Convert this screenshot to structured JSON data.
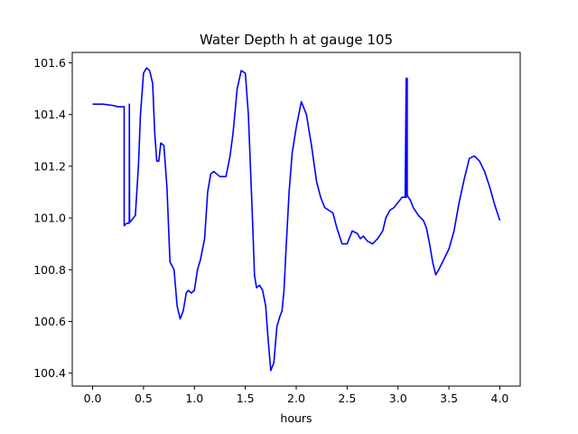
{
  "chart_data": {
    "type": "line",
    "title": "Water Depth h at gauge 105",
    "xlabel": "hours",
    "ylabel": "",
    "xlim": [
      -0.2,
      4.2
    ],
    "ylim": [
      100.35,
      101.64
    ],
    "xticks": [
      {
        "value": 0.0,
        "label": "0.0"
      },
      {
        "value": 0.5,
        "label": "0.5"
      },
      {
        "value": 1.0,
        "label": "1.0"
      },
      {
        "value": 1.5,
        "label": "1.5"
      },
      {
        "value": 2.0,
        "label": "2.0"
      },
      {
        "value": 2.5,
        "label": "2.5"
      },
      {
        "value": 3.0,
        "label": "3.0"
      },
      {
        "value": 3.5,
        "label": "3.5"
      },
      {
        "value": 4.0,
        "label": "4.0"
      }
    ],
    "yticks": [
      {
        "value": 100.4,
        "label": "100.4"
      },
      {
        "value": 100.6,
        "label": "100.6"
      },
      {
        "value": 100.8,
        "label": "100.8"
      },
      {
        "value": 101.0,
        "label": "101.0"
      },
      {
        "value": 101.2,
        "label": "101.2"
      },
      {
        "value": 101.4,
        "label": "101.4"
      },
      {
        "value": 101.6,
        "label": "101.6"
      }
    ],
    "grid": false,
    "series": [
      {
        "color": "#0000ff",
        "x": [
          0.0,
          0.1,
          0.2,
          0.25,
          0.3,
          0.31,
          0.31,
          0.32,
          0.34,
          0.36,
          0.361,
          0.363,
          0.365,
          0.37,
          0.4,
          0.42,
          0.45,
          0.47,
          0.5,
          0.53,
          0.56,
          0.59,
          0.61,
          0.63,
          0.65,
          0.67,
          0.7,
          0.73,
          0.76,
          0.8,
          0.83,
          0.86,
          0.89,
          0.92,
          0.94,
          0.97,
          1.0,
          1.03,
          1.06,
          1.1,
          1.13,
          1.16,
          1.19,
          1.22,
          1.25,
          1.28,
          1.31,
          1.35,
          1.38,
          1.42,
          1.46,
          1.5,
          1.53,
          1.55,
          1.57,
          1.59,
          1.61,
          1.64,
          1.67,
          1.7,
          1.72,
          1.75,
          1.78,
          1.81,
          1.84,
          1.86,
          1.88,
          1.9,
          1.93,
          1.96,
          2.0,
          2.05,
          2.1,
          2.15,
          2.2,
          2.24,
          2.28,
          2.32,
          2.36,
          2.4,
          2.45,
          2.5,
          2.55,
          2.6,
          2.63,
          2.66,
          2.7,
          2.75,
          2.8,
          2.85,
          2.88,
          2.92,
          2.96,
          3.0,
          3.04,
          3.07,
          3.08,
          3.08,
          3.09,
          3.09,
          3.1,
          3.12,
          3.15,
          3.2,
          3.25,
          3.28,
          3.31,
          3.34,
          3.37,
          3.4,
          3.45,
          3.5,
          3.55,
          3.6,
          3.65,
          3.7,
          3.75,
          3.8,
          3.85,
          3.9,
          3.95,
          4.0
        ],
        "y": [
          101.44,
          101.44,
          101.435,
          101.43,
          101.43,
          101.43,
          100.97,
          100.975,
          100.98,
          100.98,
          101.44,
          100.99,
          100.985,
          100.985,
          101.0,
          101.01,
          101.2,
          101.4,
          101.56,
          101.58,
          101.57,
          101.52,
          101.33,
          101.22,
          101.22,
          101.29,
          101.28,
          101.12,
          100.83,
          100.8,
          100.66,
          100.61,
          100.64,
          100.71,
          100.72,
          100.71,
          100.72,
          100.8,
          100.84,
          100.92,
          101.1,
          101.17,
          101.18,
          101.17,
          101.16,
          101.16,
          101.16,
          101.24,
          101.33,
          101.5,
          101.57,
          101.56,
          101.4,
          101.2,
          101.0,
          100.78,
          100.73,
          100.74,
          100.72,
          100.66,
          100.55,
          100.41,
          100.44,
          100.58,
          100.62,
          100.64,
          100.72,
          100.88,
          101.1,
          101.25,
          101.35,
          101.45,
          101.4,
          101.28,
          101.14,
          101.08,
          101.04,
          101.03,
          101.02,
          100.96,
          100.9,
          100.9,
          100.95,
          100.94,
          100.92,
          100.93,
          100.91,
          100.9,
          100.92,
          100.95,
          101.0,
          101.03,
          101.04,
          101.06,
          101.08,
          101.08,
          101.54,
          101.08,
          101.54,
          101.09,
          101.08,
          101.07,
          101.04,
          101.01,
          100.99,
          100.96,
          100.9,
          100.83,
          100.78,
          100.8,
          100.84,
          100.88,
          100.95,
          101.06,
          101.15,
          101.23,
          101.24,
          101.22,
          101.18,
          101.12,
          101.05,
          100.99
        ],
        "note_values": []
      }
    ]
  }
}
